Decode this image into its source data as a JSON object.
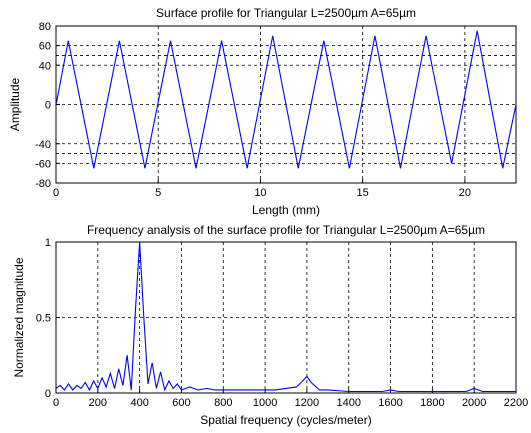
{
  "chart_data": [
    {
      "type": "line",
      "title": "Surface profile for Triangular L=2500µm A=65µm",
      "xlabel": "Length (mm)",
      "ylabel": "Amplitude",
      "xlim": [
        0,
        22.5
      ],
      "ylim": [
        -80,
        80
      ],
      "xticks": [
        0,
        5,
        10,
        15,
        20
      ],
      "yticks": [
        -80,
        -60,
        -40,
        0,
        40,
        60,
        80
      ],
      "ygrid_extra": [
        -50,
        50
      ],
      "grid": true,
      "series_color": "#0000ff",
      "series": [
        {
          "x": [
            0,
            0.05,
            0.6,
            1.85,
            3.1,
            4.35,
            5.6,
            6.85,
            8.1,
            9.35,
            10.6,
            11.85,
            13.1,
            14.35,
            15.6,
            16.85,
            18.1,
            19.35,
            20.6,
            21.85,
            22.5
          ],
          "values": [
            0,
            5,
            65,
            -65,
            65,
            -65,
            65,
            -65,
            65,
            -65,
            70,
            -65,
            65,
            -65,
            70,
            -65,
            70,
            -60,
            75,
            -65,
            0
          ]
        }
      ]
    },
    {
      "type": "line",
      "title": "Frequency analysis of the surface profile for Triangular L=2500µm A=65µm",
      "xlabel": "Spatial frequency (cycles/meter)",
      "ylabel": "Normalized magnitude",
      "xlim": [
        0,
        2200
      ],
      "ylim": [
        0,
        1
      ],
      "xticks": [
        0,
        200,
        400,
        600,
        800,
        1000,
        1200,
        1400,
        1600,
        1800,
        2000,
        2200
      ],
      "yticks": [
        0,
        0.5,
        1
      ],
      "grid": true,
      "series_color": "#0000ff",
      "series": [
        {
          "x": [
            0,
            20,
            40,
            60,
            80,
            100,
            120,
            140,
            160,
            180,
            200,
            220,
            240,
            260,
            280,
            300,
            320,
            340,
            360,
            380,
            400,
            420,
            440,
            460,
            480,
            500,
            520,
            540,
            560,
            580,
            600,
            640,
            680,
            720,
            760,
            800,
            850,
            900,
            950,
            1000,
            1050,
            1100,
            1150,
            1180,
            1200,
            1220,
            1260,
            1300,
            1400,
            1500,
            1560,
            1600,
            1640,
            1700,
            1800,
            1900,
            1960,
            2000,
            2040,
            2100,
            2200
          ],
          "values": [
            0.03,
            0.05,
            0.02,
            0.06,
            0.02,
            0.05,
            0.03,
            0.07,
            0.02,
            0.08,
            0.03,
            0.1,
            0.04,
            0.13,
            0.03,
            0.16,
            0.05,
            0.25,
            0.02,
            0.55,
            1.0,
            0.5,
            0.06,
            0.2,
            0.03,
            0.14,
            0.02,
            0.08,
            0.03,
            0.06,
            0.02,
            0.04,
            0.02,
            0.03,
            0.02,
            0.02,
            0.02,
            0.02,
            0.02,
            0.02,
            0.02,
            0.03,
            0.04,
            0.08,
            0.11,
            0.07,
            0.02,
            0.02,
            0.01,
            0.01,
            0.01,
            0.02,
            0.01,
            0.01,
            0.01,
            0.01,
            0.01,
            0.03,
            0.01,
            0.01,
            0.01
          ]
        }
      ]
    }
  ]
}
